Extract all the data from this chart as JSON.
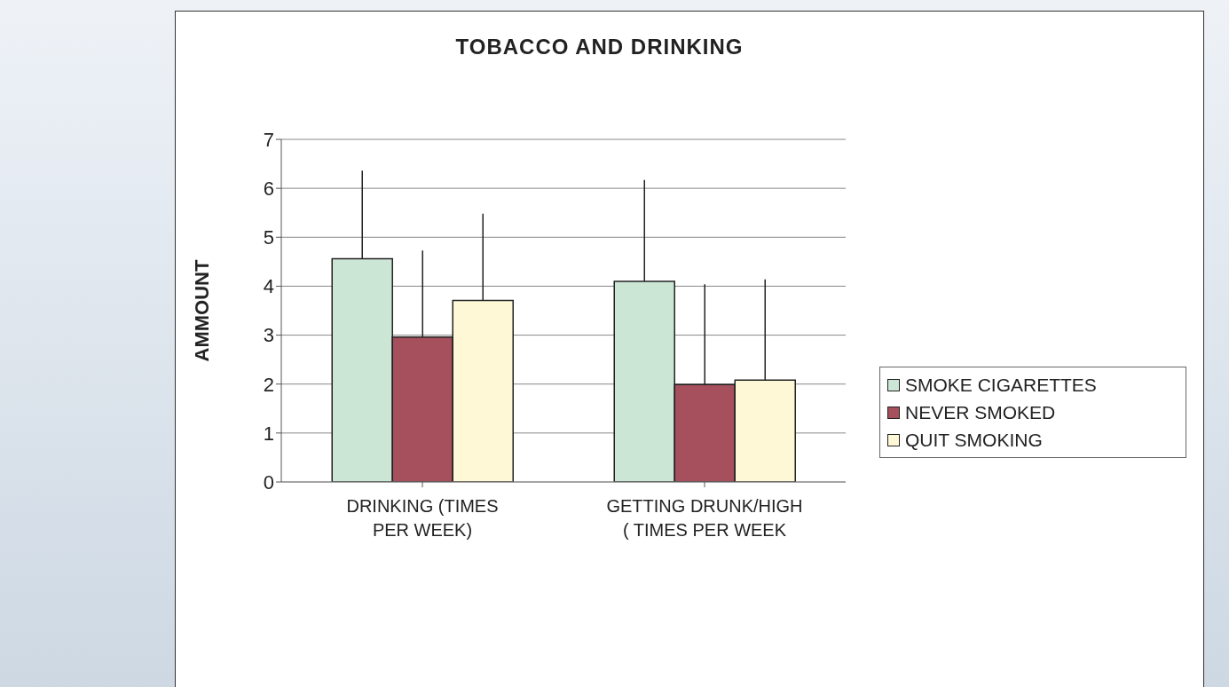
{
  "chart_data": {
    "type": "bar",
    "title": "TOBACCO AND DRINKING",
    "ylabel": "AMMOUNT",
    "categories": [
      "DRINKING (TIMES PER WEEK)",
      "GETTING DRUNK/HIGH ( TIMES PER WEEK"
    ],
    "series": [
      {
        "name": "SMOKE CIGARETTES",
        "color": "#cce6d6",
        "values": [
          4.56,
          4.1
        ],
        "errors": [
          [
            4.56,
            6.36
          ],
          [
            4.1,
            6.17
          ]
        ]
      },
      {
        "name": "NEVER SMOKED",
        "color": "#a5505c",
        "values": [
          2.96,
          1.99
        ],
        "errors": [
          [
            2.96,
            4.73
          ],
          [
            1.99,
            4.04
          ]
        ]
      },
      {
        "name": "QUIT SMOKING",
        "color": "#fff8d6",
        "values": [
          3.71,
          2.08
        ],
        "errors": [
          [
            3.71,
            5.48
          ],
          [
            2.08,
            4.14
          ]
        ]
      }
    ],
    "ylim": [
      0,
      7
    ],
    "yticks": [
      0,
      1,
      2,
      3,
      4,
      5,
      6,
      7
    ],
    "grid": "y",
    "legend": "right"
  }
}
